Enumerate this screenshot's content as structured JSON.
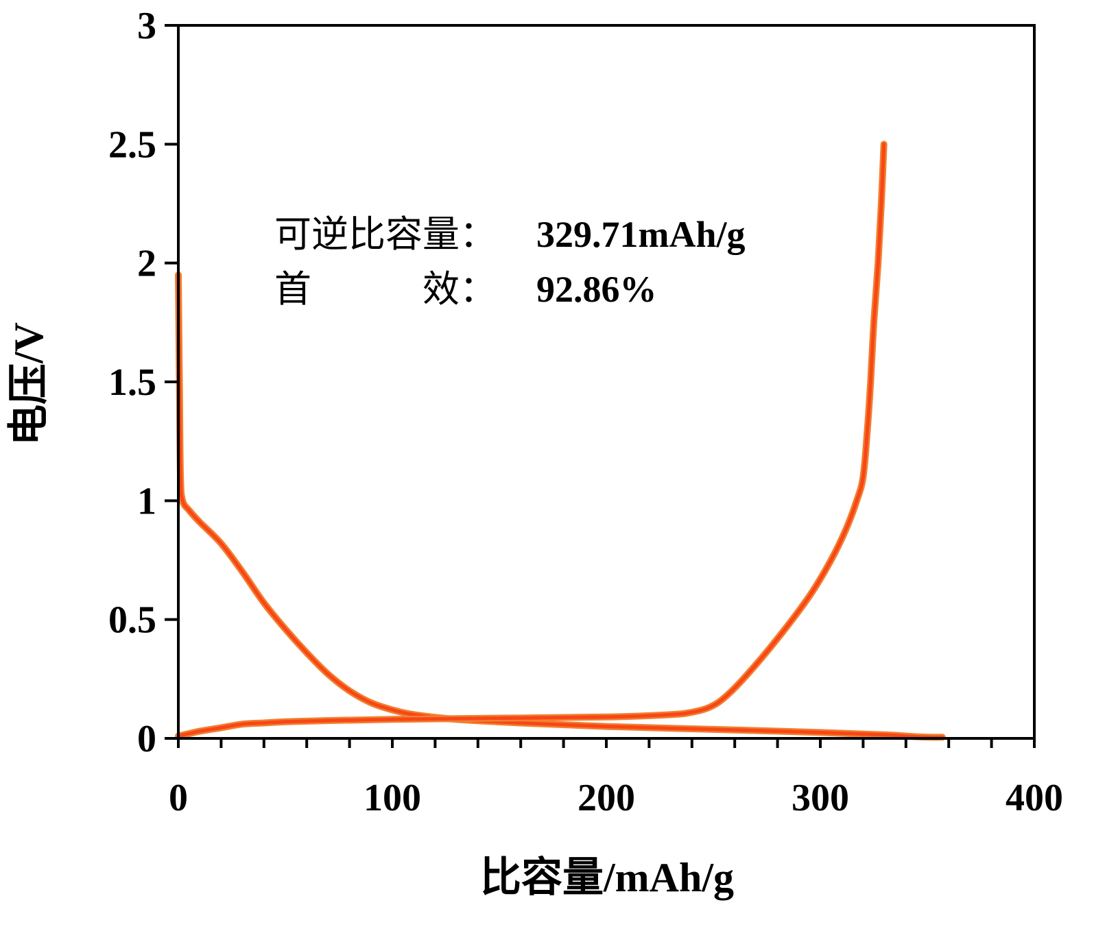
{
  "chart_data": {
    "type": "line",
    "title": "",
    "xlabel": "比容量/mAh/g",
    "ylabel": "电压/V",
    "xlim": [
      0,
      400
    ],
    "ylim": [
      0,
      3
    ],
    "xticks": [
      0,
      100,
      200,
      300,
      400
    ],
    "yticks": [
      0,
      0.5,
      1,
      1.5,
      2,
      2.5,
      3
    ],
    "xtick_labels": [
      "0",
      "100",
      "200",
      "300",
      "400"
    ],
    "ytick_labels": [
      "0",
      "0.5",
      "1",
      "1.5",
      "2",
      "2.5",
      "3"
    ],
    "x_minor_step": 20,
    "grid": false,
    "legend": "none",
    "line_color": "#F94616",
    "line_edge_color": "#F08030",
    "annotations": [
      {
        "label": "可逆比容量：",
        "value": "329.71mAh/g"
      },
      {
        "label": "首　　　效：",
        "value": "92.86%"
      }
    ],
    "series": [
      {
        "x": [
          0,
          0.5,
          1,
          2,
          5,
          10,
          20,
          30,
          40,
          50,
          60,
          70,
          80,
          90,
          100,
          110,
          130,
          160,
          200,
          250,
          300,
          330,
          345,
          352,
          357
        ],
        "y": [
          1.95,
          1.5,
          1.1,
          1.0,
          0.96,
          0.91,
          0.82,
          0.7,
          0.57,
          0.46,
          0.36,
          0.27,
          0.2,
          0.15,
          0.12,
          0.1,
          0.08,
          0.065,
          0.05,
          0.038,
          0.025,
          0.015,
          0.007,
          0.005,
          0.005
        ]
      },
      {
        "x": [
          0,
          5,
          10,
          20,
          30,
          40,
          50,
          70,
          100,
          150,
          200,
          230,
          240,
          248,
          255,
          265,
          280,
          295,
          305,
          312,
          317,
          320,
          322,
          323.5,
          325,
          327,
          328.5,
          329.71
        ],
        "y": [
          0.01,
          0.02,
          0.03,
          0.045,
          0.06,
          0.065,
          0.07,
          0.075,
          0.08,
          0.085,
          0.09,
          0.1,
          0.11,
          0.13,
          0.17,
          0.26,
          0.42,
          0.6,
          0.75,
          0.88,
          1.0,
          1.1,
          1.3,
          1.5,
          1.75,
          2.0,
          2.25,
          2.5
        ]
      }
    ]
  }
}
